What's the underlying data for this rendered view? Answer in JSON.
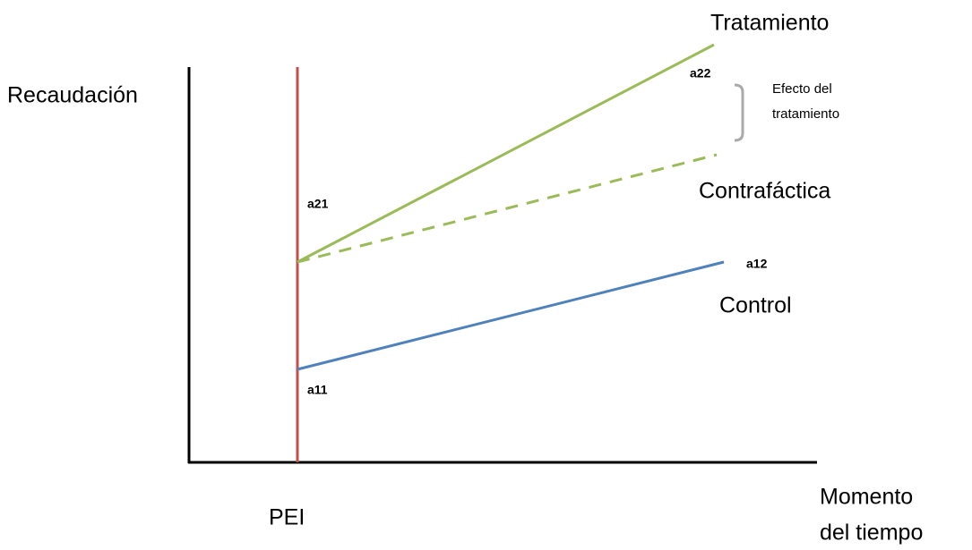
{
  "y_axis_label": "Recaudación",
  "x_axis_label": [
    "Momento",
    "del tiempo"
  ],
  "event_label": "PEI",
  "lines": {
    "treatment": "Tratamiento",
    "counterfactual": "Contrafáctica",
    "control": "Control"
  },
  "points": {
    "a11": "a11",
    "a12": "a12",
    "a21": "a21",
    "a22": "a22"
  },
  "effect_label": [
    "Efecto del",
    "tratamiento"
  ]
}
